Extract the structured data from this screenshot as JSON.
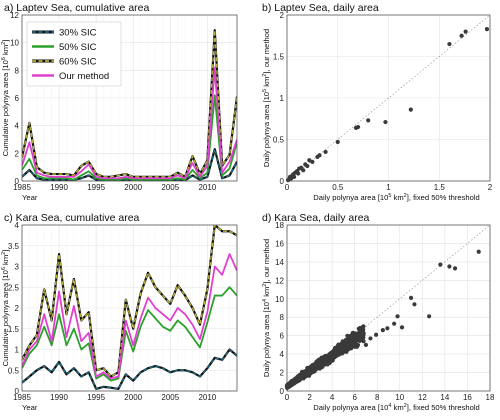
{
  "chart_data": [
    {
      "type": "line",
      "title": "a) Laptev Sea, cumulative area",
      "xlabel": "Year",
      "ylabel": "Cumulative polynya area [10⁶ km²]",
      "xlim": [
        1985,
        2014
      ],
      "ylim": [
        0,
        12
      ],
      "xticks": [
        "1985",
        "1990",
        "1995",
        "2000",
        "2005",
        "2010"
      ],
      "yticks": [
        "0",
        "2",
        "4",
        "6",
        "8",
        "10",
        "12"
      ],
      "grid": true,
      "legend": "top-left",
      "x": [
        1985,
        1986,
        1987,
        1988,
        1989,
        1990,
        1991,
        1992,
        1993,
        1994,
        1995,
        1996,
        1997,
        1998,
        1999,
        2000,
        2001,
        2002,
        2003,
        2004,
        2005,
        2006,
        2007,
        2008,
        2009,
        2010,
        2011,
        2012,
        2013,
        2014
      ],
      "series": [
        {
          "name": "30% SIC",
          "color": "#1a6b7f",
          "values": [
            0.3,
            0.8,
            0.2,
            0.1,
            0.1,
            0.1,
            0.1,
            0.1,
            0.2,
            0.4,
            0.1,
            0.05,
            0.05,
            0.1,
            0.1,
            0.1,
            0.1,
            0.05,
            0.1,
            0.05,
            0.1,
            0.1,
            0.05,
            0.4,
            0.1,
            0.3,
            2.3,
            0.2,
            0.4,
            1.4
          ]
        },
        {
          "name": "50% SIC",
          "color": "#2ca02c",
          "values": [
            0.8,
            1.6,
            0.4,
            0.2,
            0.2,
            0.2,
            0.2,
            0.1,
            0.4,
            0.7,
            0.2,
            0.1,
            0.1,
            0.1,
            0.2,
            0.1,
            0.1,
            0.1,
            0.1,
            0.1,
            0.1,
            0.2,
            0.1,
            0.8,
            0.2,
            0.6,
            6.2,
            0.4,
            0.9,
            2.8
          ]
        },
        {
          "name": "60% SIC",
          "color": "#b8b33a",
          "values": [
            1.7,
            4.2,
            1.0,
            0.6,
            0.5,
            0.5,
            0.5,
            0.4,
            1.1,
            1.4,
            0.5,
            0.3,
            0.3,
            0.4,
            0.5,
            0.3,
            0.3,
            0.3,
            0.3,
            0.3,
            0.3,
            0.6,
            0.3,
            1.8,
            0.5,
            1.5,
            10.9,
            1.1,
            1.9,
            6.1
          ]
        },
        {
          "name": "Our method",
          "color": "#e040d0",
          "values": [
            1.1,
            2.8,
            0.6,
            0.4,
            0.3,
            0.3,
            0.3,
            0.3,
            0.7,
            1.2,
            0.3,
            0.2,
            0.2,
            0.2,
            0.3,
            0.2,
            0.2,
            0.2,
            0.2,
            0.2,
            0.2,
            0.4,
            0.2,
            1.3,
            0.3,
            1.1,
            8.2,
            0.6,
            1.4,
            3.0
          ]
        }
      ]
    },
    {
      "type": "scatter",
      "title": "b) Laptev Sea, daily area",
      "xlabel": "Daily polynya area [10⁵ km²], fixed 50% threshold",
      "ylabel": "Daily polynya area [10⁵ km²], our method",
      "xlim": [
        0,
        2
      ],
      "ylim": [
        0,
        2
      ],
      "xticks": [
        "0",
        "0.5",
        "1",
        "1.5",
        "2"
      ],
      "yticks": [
        "0",
        "0.5",
        "1",
        "1.5",
        "2"
      ],
      "grid": true,
      "points": [
        [
          0.01,
          0.01
        ],
        [
          0.02,
          0.02
        ],
        [
          0.03,
          0.05
        ],
        [
          0.04,
          0.03
        ],
        [
          0.05,
          0.06
        ],
        [
          0.06,
          0.08
        ],
        [
          0.07,
          0.05
        ],
        [
          0.08,
          0.1
        ],
        [
          0.1,
          0.12
        ],
        [
          0.11,
          0.09
        ],
        [
          0.12,
          0.15
        ],
        [
          0.14,
          0.16
        ],
        [
          0.16,
          0.13
        ],
        [
          0.18,
          0.2
        ],
        [
          0.2,
          0.18
        ],
        [
          0.22,
          0.25
        ],
        [
          0.25,
          0.23
        ],
        [
          0.3,
          0.29
        ],
        [
          0.32,
          0.31
        ],
        [
          0.38,
          0.35
        ],
        [
          0.5,
          0.47
        ],
        [
          0.68,
          0.64
        ],
        [
          0.7,
          0.65
        ],
        [
          0.8,
          0.73
        ],
        [
          0.97,
          0.71
        ],
        [
          1.22,
          0.86
        ],
        [
          1.6,
          1.65
        ],
        [
          1.72,
          1.75
        ],
        [
          1.76,
          1.8
        ],
        [
          1.97,
          1.83
        ]
      ]
    },
    {
      "type": "line",
      "title": "c) Kara Sea, cumulative area",
      "xlabel": "Year",
      "ylabel": "Cumulative polynya area [10⁶ km²]",
      "xlim": [
        1985,
        2014
      ],
      "ylim": [
        0,
        4
      ],
      "xticks": [
        "1985",
        "1990",
        "1995",
        "2000",
        "2005",
        "2010"
      ],
      "yticks": [
        "0",
        "0.5",
        "1",
        "1.5",
        "2",
        "2.5",
        "3",
        "3.5",
        "4"
      ],
      "grid": true,
      "x": [
        1985,
        1986,
        1987,
        1988,
        1989,
        1990,
        1991,
        1992,
        1993,
        1994,
        1995,
        1996,
        1997,
        1998,
        1999,
        2000,
        2001,
        2002,
        2003,
        2004,
        2005,
        2006,
        2007,
        2008,
        2009,
        2010,
        2011,
        2012,
        2013,
        2014
      ],
      "series": [
        {
          "name": "30% SIC",
          "color": "#1a6b7f",
          "values": [
            0.2,
            0.35,
            0.5,
            0.6,
            0.45,
            0.7,
            0.4,
            0.55,
            0.35,
            0.45,
            0.05,
            0.1,
            0.08,
            0.05,
            0.4,
            0.25,
            0.45,
            0.55,
            0.6,
            0.55,
            0.45,
            0.5,
            0.5,
            0.45,
            0.35,
            0.55,
            0.8,
            0.75,
            1.0,
            0.85
          ]
        },
        {
          "name": "50% SIC",
          "color": "#2ca02c",
          "values": [
            0.55,
            0.9,
            1.1,
            1.55,
            1.1,
            1.85,
            1.1,
            1.5,
            1.0,
            1.15,
            0.3,
            0.4,
            0.25,
            0.3,
            1.45,
            0.95,
            1.55,
            1.95,
            1.75,
            1.55,
            1.45,
            1.7,
            1.55,
            1.3,
            1.05,
            1.65,
            2.3,
            2.3,
            2.5,
            2.3
          ]
        },
        {
          "name": "60% SIC",
          "color": "#b8b33a",
          "values": [
            0.75,
            1.1,
            1.35,
            2.45,
            1.7,
            3.3,
            1.85,
            2.7,
            1.7,
            1.9,
            0.5,
            0.55,
            0.35,
            0.45,
            2.2,
            1.5,
            2.35,
            2.85,
            2.5,
            2.3,
            2.1,
            2.55,
            2.3,
            2.0,
            1.6,
            2.45,
            4.0,
            3.85,
            3.85,
            3.75
          ]
        },
        {
          "name": "Our method",
          "color": "#e040d0",
          "values": [
            0.6,
            1.0,
            1.2,
            1.85,
            1.2,
            2.4,
            1.3,
            2.05,
            1.2,
            1.4,
            0.35,
            0.45,
            0.3,
            0.35,
            1.7,
            1.1,
            1.75,
            2.25,
            2.0,
            1.85,
            1.7,
            2.0,
            1.85,
            1.6,
            1.25,
            1.9,
            3.0,
            2.8,
            3.3,
            2.9
          ]
        }
      ]
    },
    {
      "type": "scatter",
      "title": "d) Kara Sea, daily area",
      "xlabel": "Daily polynya area [10⁴ km²], fixed 50% threshold",
      "ylabel": "Daily polynya area [10⁴ km²], our method",
      "xlim": [
        0,
        18
      ],
      "ylim": [
        0,
        18
      ],
      "xticks": [
        "0",
        "2",
        "4",
        "6",
        "8",
        "10",
        "12",
        "14",
        "16",
        "18"
      ],
      "yticks": [
        "0",
        "2",
        "4",
        "6",
        "8",
        "10",
        "12",
        "14",
        "16",
        "18"
      ],
      "grid": true,
      "points": [
        [
          13.6,
          13.7
        ],
        [
          14.4,
          13.5
        ],
        [
          14.9,
          13.3
        ],
        [
          17.0,
          15.1
        ],
        [
          11.0,
          10.1
        ],
        [
          11.3,
          9.4
        ],
        [
          12.6,
          8.1
        ],
        [
          9.5,
          7.3
        ],
        [
          9.8,
          8.1
        ],
        [
          10.2,
          6.9
        ],
        [
          8.9,
          6.8
        ],
        [
          8.5,
          6.6
        ],
        [
          7.9,
          6.1
        ],
        [
          7.4,
          5.7
        ],
        [
          7.0,
          5.0
        ],
        [
          6.2,
          4.8
        ],
        [
          5.7,
          5.4
        ],
        [
          5.3,
          4.4
        ],
        [
          6.6,
          6.4
        ],
        [
          4.5,
          4.9
        ],
        [
          4.0,
          3.6
        ]
      ]
    }
  ]
}
